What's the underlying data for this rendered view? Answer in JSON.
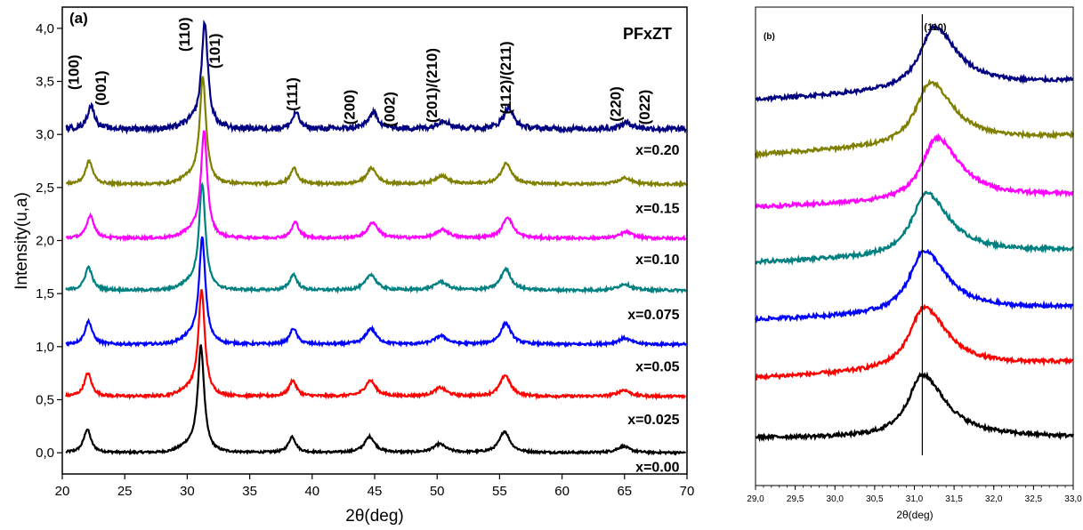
{
  "chart_data": [
    {
      "type": "line",
      "panel_label": "(a)",
      "title": "PFxZT",
      "xlabel": "2θ(deg)",
      "ylabel": "Intensity(u,a)",
      "xlim": [
        20,
        70
      ],
      "ylim": [
        -0.2,
        4.2
      ],
      "x_ticks": [
        20,
        25,
        30,
        35,
        40,
        45,
        50,
        55,
        60,
        65,
        70
      ],
      "x_tick_labels": [
        "20",
        "25",
        "30",
        "35",
        "40",
        "45",
        "50",
        "55",
        "60",
        "65",
        "70"
      ],
      "y_ticks": [
        0,
        0.5,
        1,
        1.5,
        2,
        2.5,
        3,
        3.5,
        4
      ],
      "y_tick_labels": [
        "0,0",
        "0,5",
        "1,0",
        "1,5",
        "2,0",
        "2,5",
        "3,0",
        "3,5",
        "4,0"
      ],
      "grid": false,
      "series": [
        {
          "name": "x=0.00",
          "color": "#000000",
          "baseline": 0.0,
          "peak_shift": 0.0,
          "noise": 0.01
        },
        {
          "name": "x=0.025",
          "color": "#ff0000",
          "baseline": 0.53,
          "peak_shift": 0.05,
          "noise": 0.012
        },
        {
          "name": "x=0.05",
          "color": "#0000ff",
          "baseline": 1.02,
          "peak_shift": 0.1,
          "noise": 0.012
        },
        {
          "name": "x=0.075",
          "color": "#008080",
          "baseline": 1.53,
          "peak_shift": 0.1,
          "noise": 0.012
        },
        {
          "name": "x=0.10",
          "color": "#ff00ff",
          "baseline": 2.02,
          "peak_shift": 0.25,
          "noise": 0.012
        },
        {
          "name": "x=0.15",
          "color": "#808000",
          "baseline": 2.53,
          "peak_shift": 0.15,
          "noise": 0.012
        },
        {
          "name": "x=0.20",
          "color": "#000080",
          "baseline": 3.05,
          "peak_shift": 0.3,
          "noise": 0.025
        }
      ],
      "peaks": [
        {
          "hkl": "(100)",
          "two_theta": 22.0,
          "height": 0.22,
          "width": 0.35
        },
        {
          "hkl": "(110)",
          "two_theta": 31.1,
          "height": 0.97,
          "width": 0.3
        },
        {
          "hkl": "(111)",
          "two_theta": 38.4,
          "height": 0.15,
          "width": 0.35
        },
        {
          "hkl": "(200)",
          "two_theta": 44.6,
          "height": 0.15,
          "width": 0.5
        },
        {
          "hkl": "(201)/(210)",
          "two_theta": 50.2,
          "height": 0.08,
          "width": 0.6
        },
        {
          "hkl": "(112)/(211)",
          "two_theta": 55.4,
          "height": 0.2,
          "width": 0.5
        },
        {
          "hkl": "(220)",
          "two_theta": 64.9,
          "height": 0.06,
          "width": 0.6
        }
      ],
      "peak_labels": [
        {
          "text": "(100)",
          "x": 21.3,
          "y": 3.42
        },
        {
          "text": "(001)",
          "x": 23.5,
          "y": 3.27
        },
        {
          "text": "(110)",
          "x": 30.2,
          "y": 3.78
        },
        {
          "text": "(101)",
          "x": 32.6,
          "y": 3.62
        },
        {
          "text": "(111)",
          "x": 38.8,
          "y": 3.22
        },
        {
          "text": "(200)",
          "x": 43.4,
          "y": 3.09
        },
        {
          "text": "(002)",
          "x": 46.6,
          "y": 3.07
        },
        {
          "text": "(201)/(210)",
          "x": 50.0,
          "y": 3.11
        },
        {
          "text": "(112)/(211)",
          "x": 55.9,
          "y": 3.19
        },
        {
          "text": "(220)",
          "x": 64.7,
          "y": 3.12
        },
        {
          "text": "(022)",
          "x": 67.0,
          "y": 3.09
        }
      ],
      "sample_labels": [
        {
          "text": "x=0.20",
          "x": 69.4,
          "y": 2.86
        },
        {
          "text": "x=0.15",
          "x": 69.4,
          "y": 2.31
        },
        {
          "text": "x=0.10",
          "x": 69.4,
          "y": 1.83
        },
        {
          "text": "x=0.075",
          "x": 69.4,
          "y": 1.31
        },
        {
          "text": "x=0.05",
          "x": 69.4,
          "y": 0.82
        },
        {
          "text": "x=0.025",
          "x": 69.4,
          "y": 0.32
        },
        {
          "text": "x=0.00",
          "x": 69.4,
          "y": -0.13
        }
      ]
    },
    {
      "type": "line",
      "panel_label": "(b)",
      "xlabel": "2θ(deg)",
      "xlim": [
        29.0,
        33.0
      ],
      "x_ticks": [
        29.0,
        29.5,
        30.0,
        30.5,
        31.0,
        31.5,
        32.0,
        32.5,
        33.0
      ],
      "x_tick_labels": [
        "29,0",
        "29,5",
        "30,0",
        "30,5",
        "31,0",
        "31,5",
        "32,0",
        "32,5",
        "33,0"
      ],
      "reference_line": {
        "x": 31.1,
        "label": "(110)"
      },
      "series": [
        {
          "name": "x=0.00",
          "color": "#000000",
          "center": 31.1,
          "baseline": 0.0,
          "height": 1.05,
          "tilt": 0.0
        },
        {
          "name": "x=0.025",
          "color": "#ff0000",
          "center": 31.12,
          "baseline": 1.0,
          "height": 1.05,
          "tilt": 0.25
        },
        {
          "name": "x=0.05",
          "color": "#0000ff",
          "center": 31.12,
          "baseline": 1.97,
          "height": 1.05,
          "tilt": 0.2
        },
        {
          "name": "x=0.075",
          "color": "#008080",
          "center": 31.15,
          "baseline": 2.93,
          "height": 1.05,
          "tilt": 0.2
        },
        {
          "name": "x=0.10",
          "color": "#ff00ff",
          "center": 31.28,
          "baseline": 3.85,
          "height": 1.05,
          "tilt": 0.2
        },
        {
          "name": "x=0.15",
          "color": "#808000",
          "center": 31.2,
          "baseline": 4.73,
          "height": 1.05,
          "tilt": 0.3
        },
        {
          "name": "x=0.20",
          "color": "#000080",
          "center": 31.25,
          "baseline": 5.65,
          "height": 1.05,
          "tilt": 0.3
        }
      ]
    }
  ]
}
